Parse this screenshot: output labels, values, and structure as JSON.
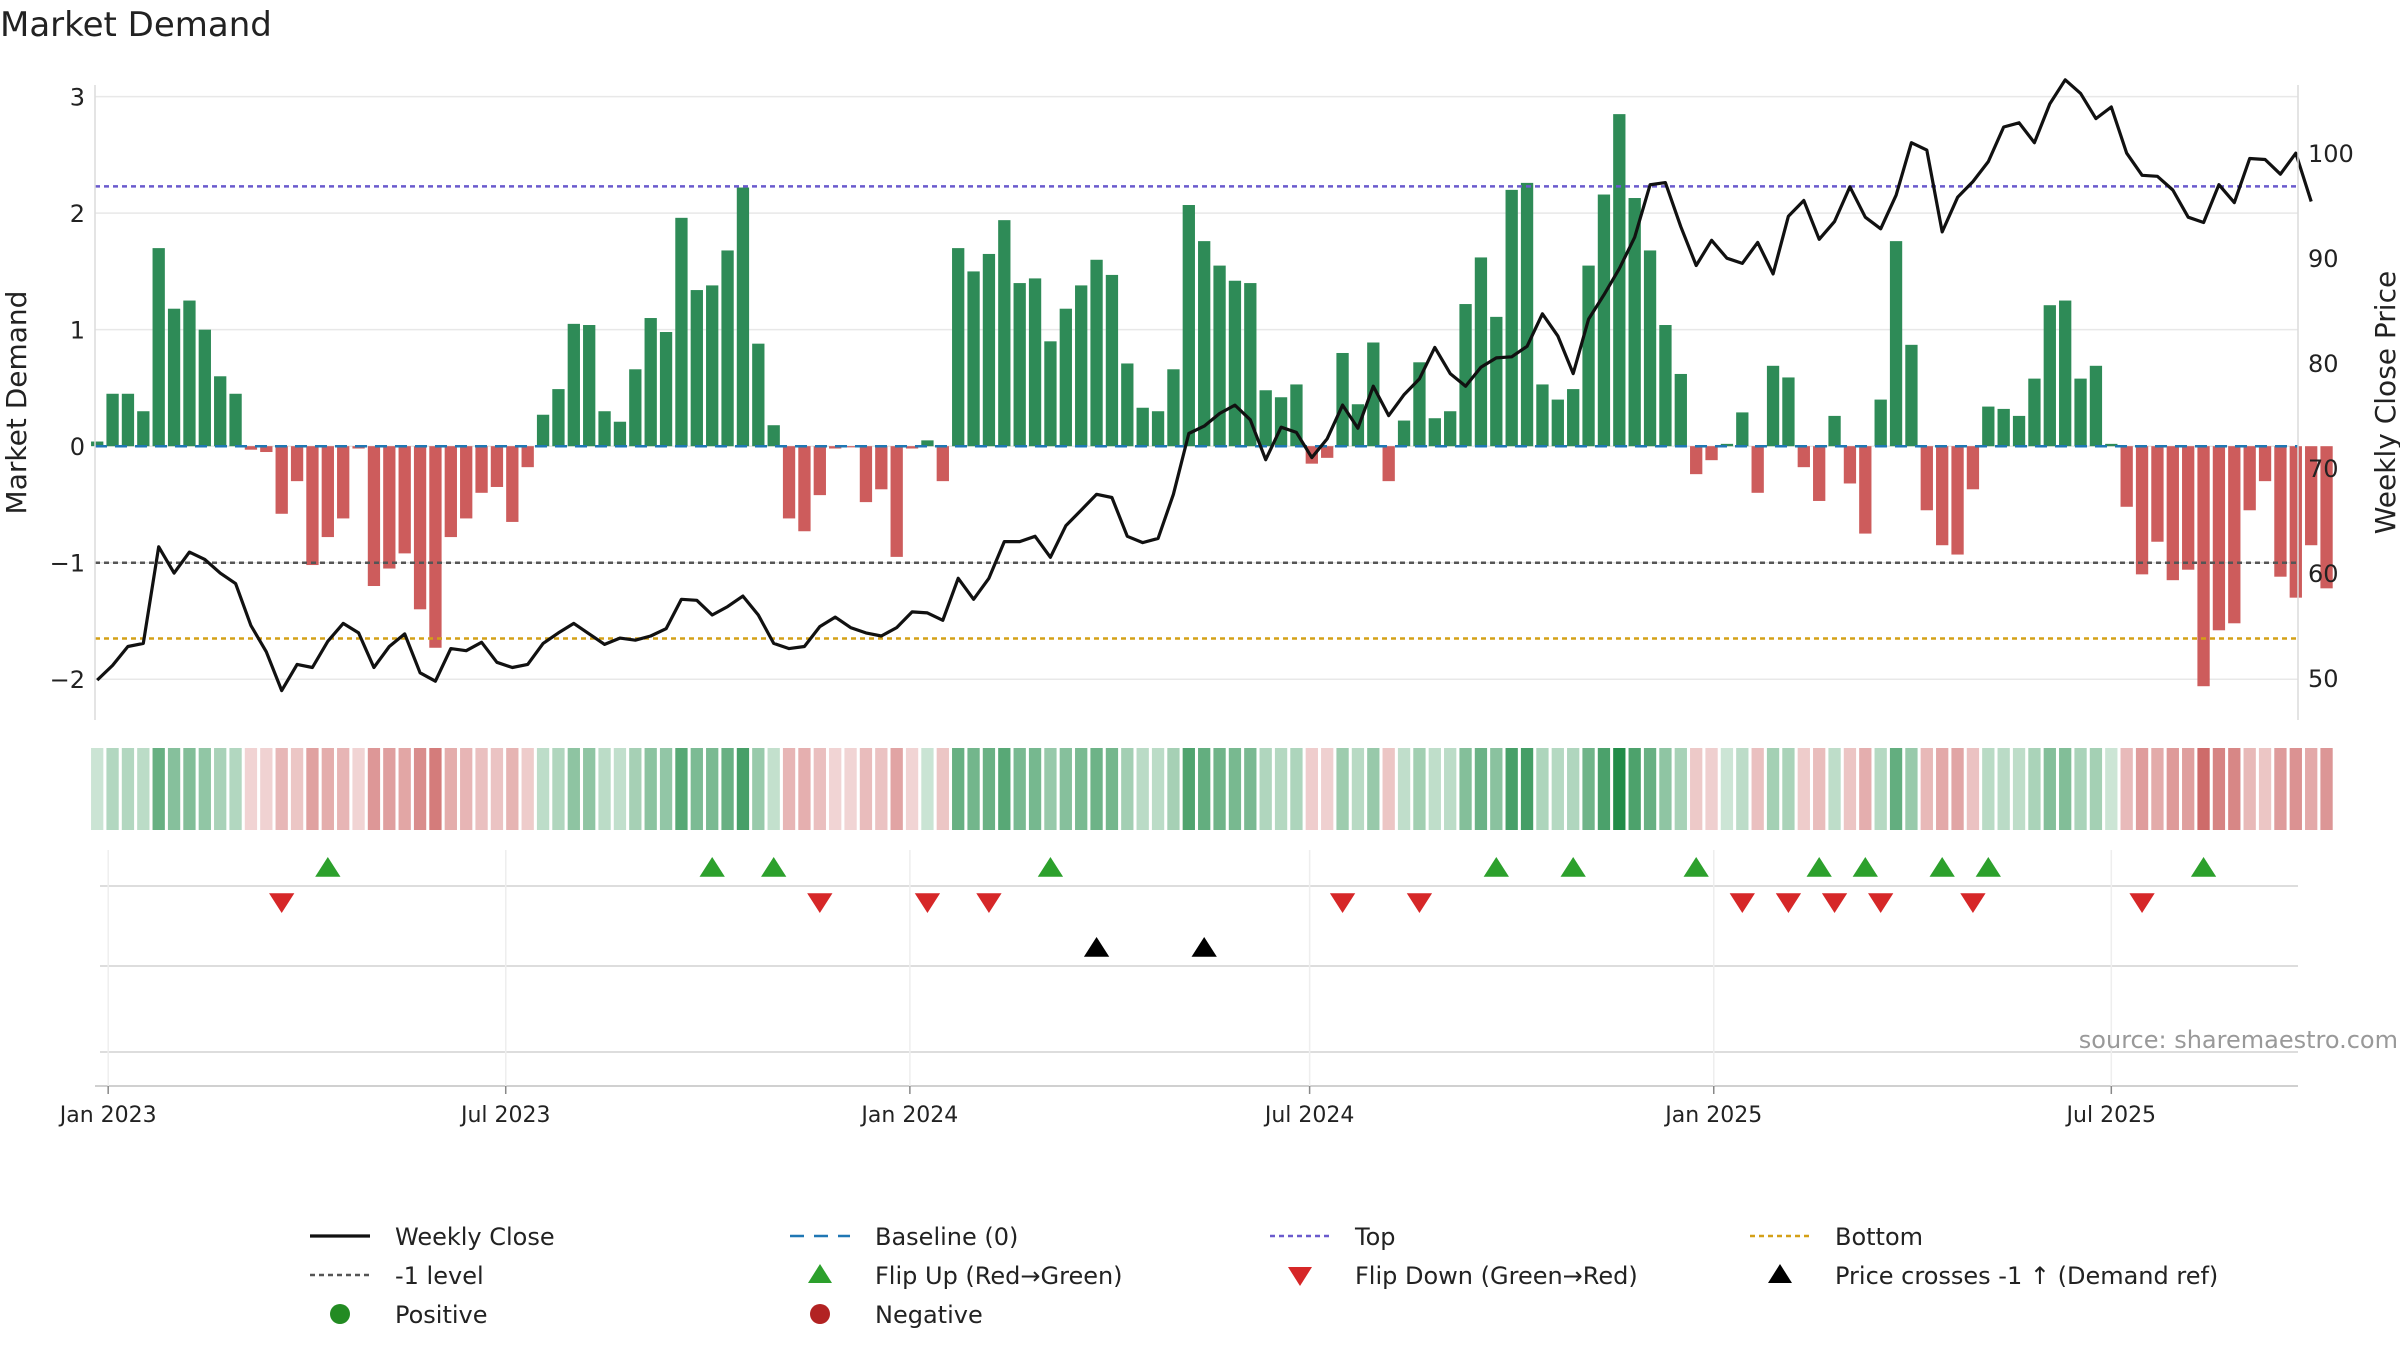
{
  "title": "Market Demand",
  "source": "source: sharemaestro.com",
  "colors": {
    "positive": "#2e8b57",
    "negative": "#cd5c5c",
    "line": "#111111",
    "baseline": "#1f77b4",
    "top": "#6a5acd",
    "minus1": "#555555",
    "bottom": "#d4a017",
    "flip_up": "#2ca02c",
    "flip_down": "#d62728",
    "cross": "#000000",
    "legend_positive": "#228b22",
    "legend_negative": "#b22222"
  },
  "chart_data": {
    "type": "bar",
    "title": "Market Demand",
    "ylabel": "Market Demand",
    "y2label": "Weekly Close Price",
    "ylim": [
      -2.35,
      3.1
    ],
    "y2lim": [
      46.0,
      106.5
    ],
    "yticks": [
      -2,
      -1,
      0,
      1,
      2,
      3
    ],
    "y2ticks": [
      50,
      60,
      70,
      80,
      90,
      100
    ],
    "x_start": "2022-12-26",
    "x_end": "2025-09-24",
    "xticks": [
      {
        "date": "2023-01-01",
        "label": "Jan 2023"
      },
      {
        "date": "2023-07-01",
        "label": "Jul 2023"
      },
      {
        "date": "2024-01-01",
        "label": "Jan 2024"
      },
      {
        "date": "2024-07-01",
        "label": "Jul 2024"
      },
      {
        "date": "2025-01-01",
        "label": "Jan 2025"
      },
      {
        "date": "2025-07-01",
        "label": "Jul 2025"
      }
    ],
    "first_week": "2022-12-27",
    "demand": [
      0.04,
      0.45,
      0.45,
      0.3,
      1.7,
      1.18,
      1.25,
      1.0,
      0.6,
      0.45,
      -0.03,
      -0.05,
      -0.58,
      -0.3,
      -1.02,
      -0.78,
      -0.62,
      -0.02,
      -1.2,
      -1.05,
      -0.92,
      -1.4,
      -1.73,
      -0.78,
      -0.62,
      -0.4,
      -0.35,
      -0.65,
      -0.18,
      0.27,
      0.49,
      1.05,
      1.04,
      0.3,
      0.21,
      0.66,
      1.1,
      0.98,
      1.96,
      1.34,
      1.38,
      1.68,
      2.22,
      0.88,
      0.18,
      -0.62,
      -0.73,
      -0.42,
      -0.02,
      -0.01,
      -0.48,
      -0.37,
      -0.95,
      -0.02,
      0.05,
      -0.3,
      1.7,
      1.5,
      1.65,
      1.94,
      1.4,
      1.44,
      0.9,
      1.18,
      1.38,
      1.6,
      1.47,
      0.71,
      0.33,
      0.3,
      0.66,
      2.07,
      1.76,
      1.55,
      1.42,
      1.4,
      0.48,
      0.42,
      0.53,
      -0.15,
      -0.1,
      0.8,
      0.36,
      0.89,
      -0.3,
      0.22,
      0.72,
      0.24,
      0.3,
      1.22,
      1.62,
      1.11,
      2.2,
      2.26,
      0.53,
      0.4,
      0.49,
      1.55,
      2.16,
      2.85,
      2.13,
      1.68,
      1.04,
      0.62,
      -0.24,
      -0.12,
      0.02,
      0.29,
      -0.4,
      0.69,
      0.59,
      -0.18,
      -0.47,
      0.26,
      -0.32,
      -0.75,
      0.4,
      1.76,
      0.87,
      -0.55,
      -0.85,
      -0.93,
      -0.37,
      0.34,
      0.32,
      0.26,
      0.58,
      1.21,
      1.25,
      0.58,
      0.69,
      0.02,
      -0.52,
      -1.1,
      -0.82,
      -1.15,
      -1.06,
      -2.06,
      -1.58,
      -1.52,
      -0.55,
      -0.3,
      -1.12,
      -1.3,
      -0.85,
      -1.22
    ],
    "weekly_close": [
      49.8,
      51.2,
      53.0,
      53.3,
      62.5,
      60.0,
      62.0,
      61.3,
      60.0,
      59.0,
      55.0,
      52.5,
      48.8,
      51.3,
      51.0,
      53.5,
      55.2,
      54.3,
      51.0,
      53.0,
      54.2,
      50.5,
      49.7,
      52.8,
      52.6,
      53.4,
      51.5,
      51.0,
      51.3,
      53.3,
      54.3,
      55.2,
      54.2,
      53.2,
      53.8,
      53.6,
      54.0,
      54.7,
      57.5,
      57.4,
      56.0,
      56.8,
      57.8,
      56.0,
      53.3,
      52.8,
      53.0,
      54.9,
      55.8,
      54.8,
      54.3,
      54.0,
      54.8,
      56.3,
      56.2,
      55.5,
      59.5,
      57.5,
      59.5,
      63.0,
      63.0,
      63.5,
      61.5,
      64.5,
      66.0,
      67.5,
      67.2,
      63.5,
      62.9,
      63.3,
      67.5,
      73.3,
      74.0,
      75.2,
      76.0,
      74.6,
      70.8,
      73.9,
      73.4,
      71.0,
      72.8,
      76.0,
      73.8,
      77.8,
      75.0,
      77.0,
      78.5,
      81.5,
      79.0,
      77.8,
      79.6,
      80.5,
      80.6,
      81.6,
      84.7,
      82.6,
      79.0,
      84.2,
      86.5,
      89.0,
      92.0,
      97.0,
      97.2,
      93.0,
      89.3,
      91.7,
      90.0,
      89.5,
      91.5,
      88.5,
      94.0,
      95.5,
      91.8,
      93.5,
      96.8,
      93.9,
      92.8,
      96.0,
      101.0,
      100.3,
      92.5,
      95.8,
      97.3,
      99.2,
      102.5,
      102.9,
      101.0,
      104.7,
      107.0,
      105.7,
      103.3,
      104.4,
      100.0,
      97.9,
      97.8,
      96.5,
      93.9,
      93.4,
      97.0,
      95.3,
      99.5,
      99.4,
      98.0,
      100.0,
      95.4
    ],
    "top_level": 2.23,
    "minus1_level": -1.0,
    "bottom_level": -1.65,
    "flip_up_weeks": [
      15,
      40,
      44,
      62,
      91,
      96,
      104,
      112,
      115,
      120,
      123,
      137
    ],
    "flip_down_weeks": [
      12,
      47,
      54,
      58,
      81,
      86,
      107,
      110,
      113,
      116,
      122,
      133
    ],
    "cross_weeks": [
      65,
      72
    ]
  },
  "legend": [
    {
      "label": "Weekly Close",
      "style": "line"
    },
    {
      "label": "Baseline (0)",
      "style": "baseline"
    },
    {
      "label": "Top",
      "style": "top"
    },
    {
      "label": "Bottom",
      "style": "bottom"
    },
    {
      "label": "-1 level",
      "style": "minus1"
    },
    {
      "label": "Flip Up (Red→Green)",
      "style": "flip_up"
    },
    {
      "label": "Flip Down (Green→Red)",
      "style": "flip_down"
    },
    {
      "label": "Price crosses -1 ↑ (Demand ref)",
      "style": "cross"
    },
    {
      "label": "Positive",
      "style": "positive"
    },
    {
      "label": "Negative",
      "style": "negative"
    }
  ]
}
